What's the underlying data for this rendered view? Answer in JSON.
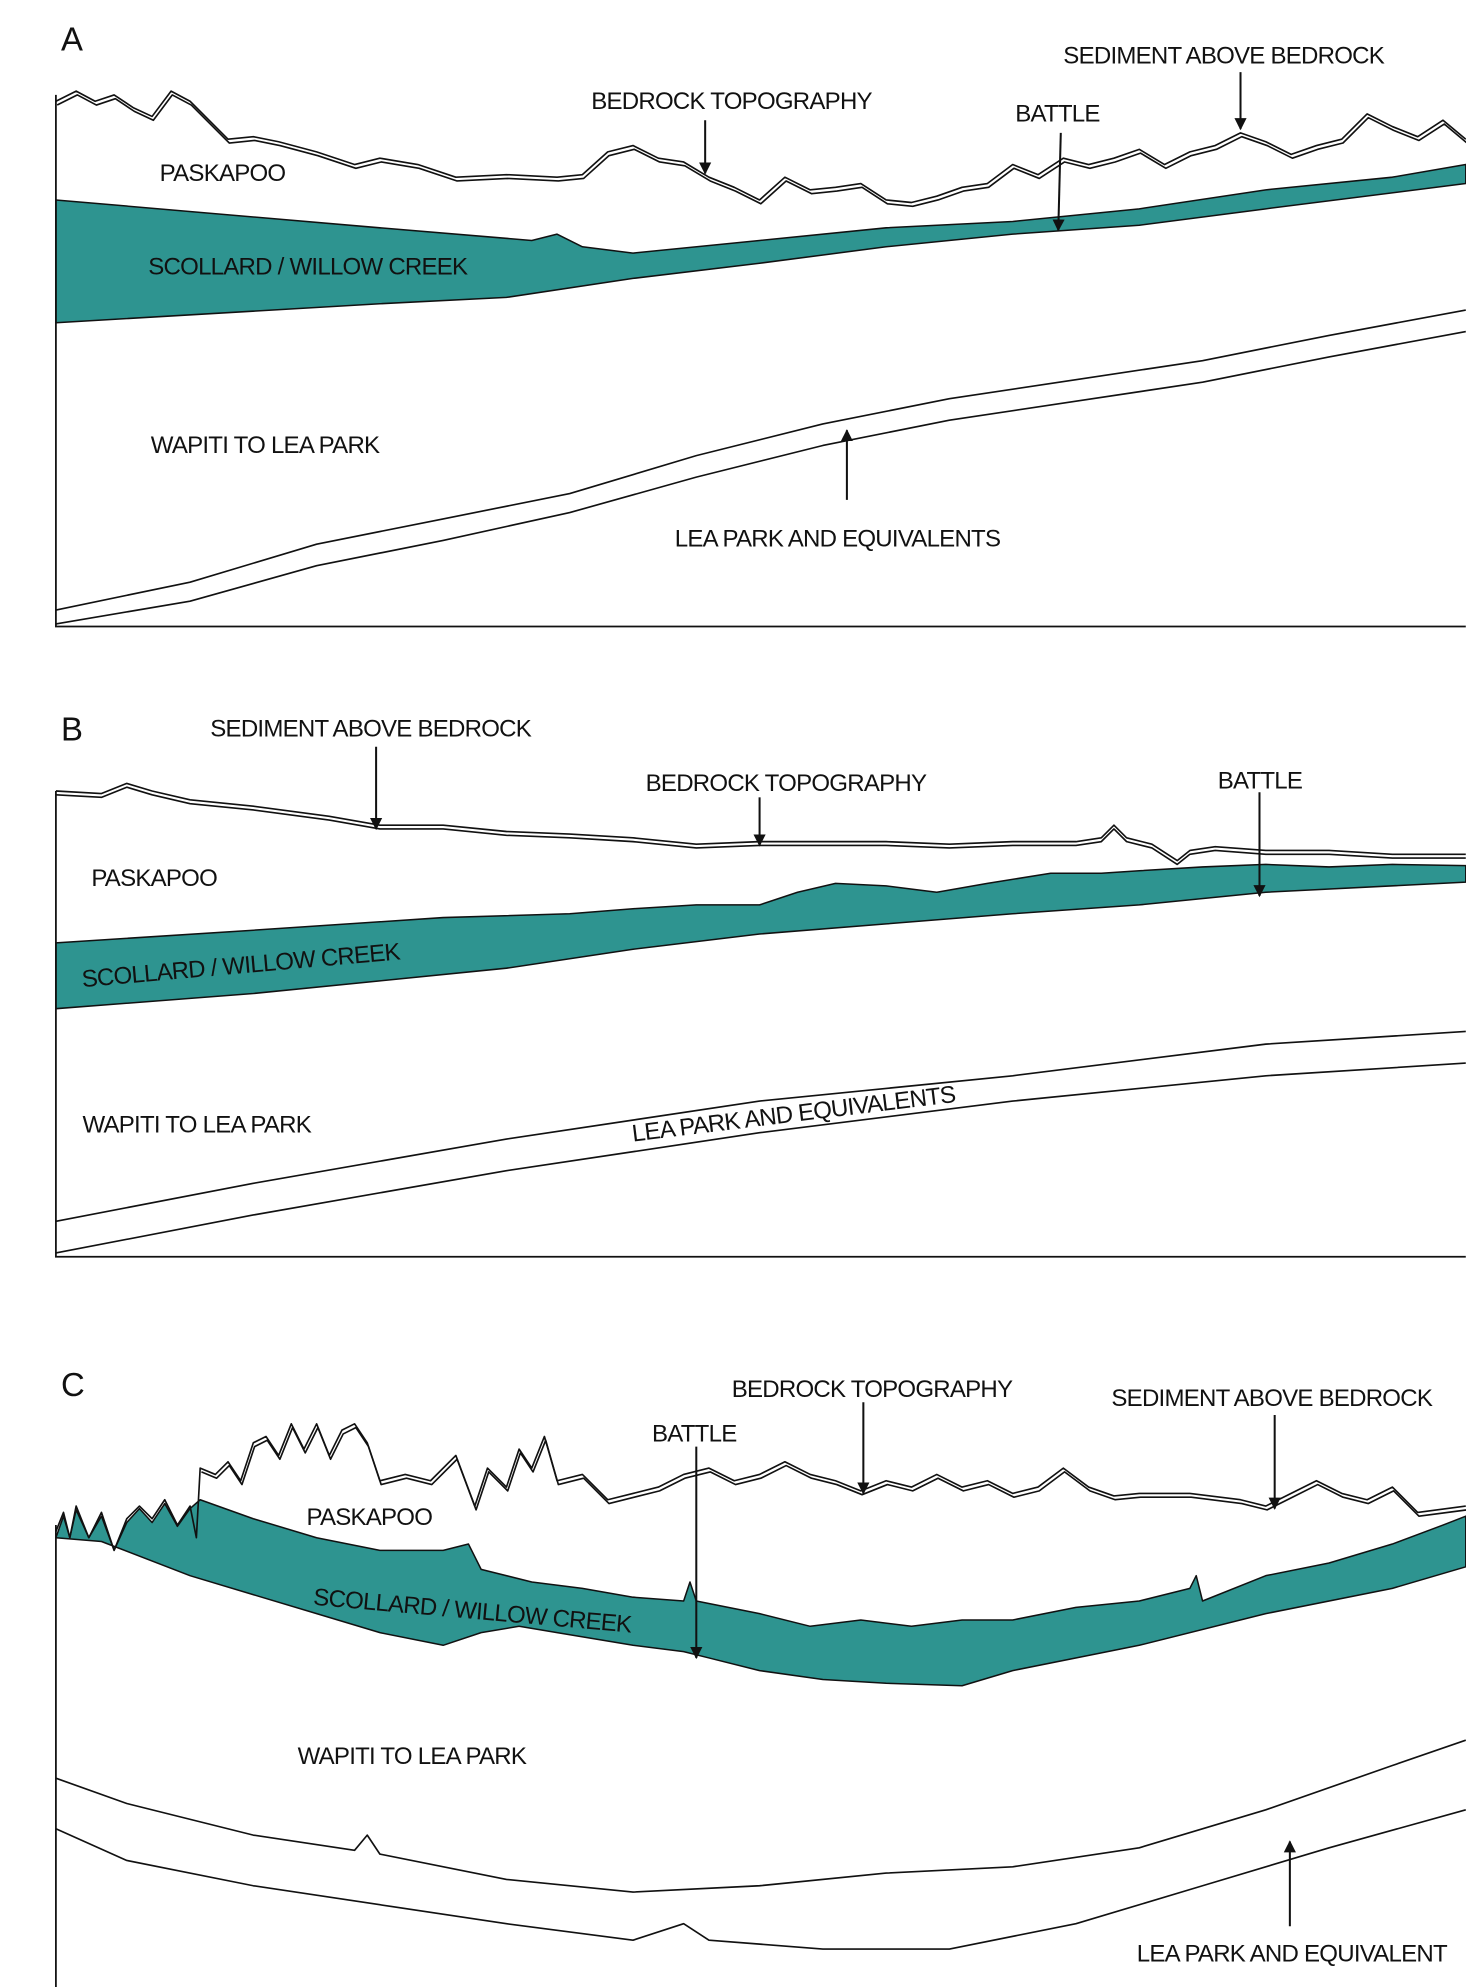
{
  "panels": [
    {
      "label": "A",
      "annotations": {
        "sediment_above_bedrock": "SEDIMENT ABOVE BEDROCK",
        "bedrock_topography": "BEDROCK TOPOGRAPHY",
        "battle": "BATTLE",
        "paskapoo": "PASKAPOO",
        "scollard_willow_creek": "SCOLLARD / WILLOW CREEK",
        "wapiti_to_lea_park": "WAPITI TO LEA PARK",
        "lea_park_and_equivalents": "LEA PARK AND EQUIVALENTS"
      }
    },
    {
      "label": "B",
      "annotations": {
        "sediment_above_bedrock": "SEDIMENT ABOVE BEDROCK",
        "bedrock_topography": "BEDROCK TOPOGRAPHY",
        "battle": "BATTLE",
        "paskapoo": "PASKAPOO",
        "scollard_willow_creek": "SCOLLARD / WILLOW CREEK",
        "wapiti_to_lea_park": "WAPITI TO LEA PARK",
        "lea_park_and_equivalents": "LEA PARK AND EQUIVALENTS"
      }
    },
    {
      "label": "C",
      "annotations": {
        "bedrock_topography": "BEDROCK TOPOGRAPHY",
        "sediment_above_bedrock": "SEDIMENT ABOVE BEDROCK",
        "battle": "BATTLE",
        "paskapoo": "PASKAPOO",
        "scollard_willow_creek": "SCOLLARD / WILLOW CREEK",
        "wapiti_to_lea_park": "WAPITI TO LEA PARK",
        "lea_park_and_equivalents": "LEA PARK AND EQUIVALENT"
      }
    }
  ]
}
